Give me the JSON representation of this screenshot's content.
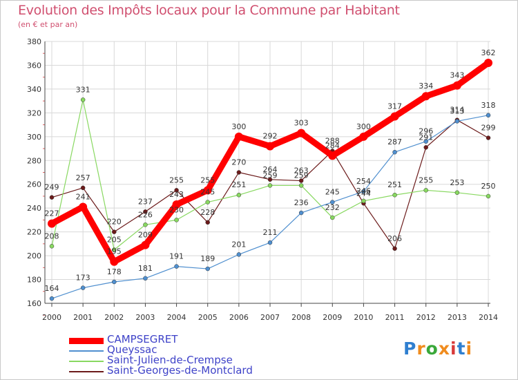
{
  "header": {
    "title": "Evolution des Impôts locaux pour la Commune par Habitant",
    "subtitle": "(en € et par an)"
  },
  "chart_data": {
    "type": "line",
    "title": "Evolution des Impôts locaux pour la Commune par Habitant",
    "subtitle": "(en € et par an)",
    "xlabel": "",
    "ylabel": "",
    "x": [
      "2000",
      "2001",
      "2002",
      "2003",
      "2004",
      "2005",
      "2006",
      "2007",
      "2008",
      "2009",
      "2010",
      "2011",
      "2012",
      "2013",
      "2014"
    ],
    "ylim": [
      160,
      380
    ],
    "yticks": [
      160,
      180,
      200,
      220,
      240,
      260,
      280,
      300,
      320,
      340,
      360,
      380
    ],
    "grid": true,
    "legend_position": "bottom-left",
    "series": [
      {
        "name": "CAMPSEGRET",
        "color": "#ff0000",
        "values": [
          227,
          241,
          195,
          209,
          243,
          255,
          300,
          292,
          303,
          284,
          300,
          317,
          334,
          343,
          362
        ]
      },
      {
        "name": "Queyssac",
        "color": "#4f8fcf",
        "values": [
          164,
          173,
          178,
          181,
          191,
          189,
          201,
          211,
          236,
          245,
          254,
          287,
          296,
          313,
          318
        ]
      },
      {
        "name": "Saint-Julien-de-Crempse",
        "color": "#88d860",
        "values": [
          208,
          331,
          205,
          226,
          230,
          245,
          251,
          259,
          259,
          232,
          246,
          251,
          255,
          253,
          250
        ]
      },
      {
        "name": "Saint-Georges-de-Montclard",
        "color": "#6b1a1a",
        "values": [
          249,
          257,
          220,
          237,
          255,
          228,
          270,
          264,
          263,
          288,
          244,
          206,
          291,
          314,
          299
        ]
      }
    ]
  },
  "logo": {
    "letters": [
      "P",
      "r",
      "o",
      "x",
      "i",
      "t",
      "i"
    ],
    "colors": [
      "#2f7fd0",
      "#f08c1e",
      "#3aa83a",
      "#f08c1e",
      "#d83a3a",
      "#2f7fd0",
      "#f08c1e"
    ]
  }
}
